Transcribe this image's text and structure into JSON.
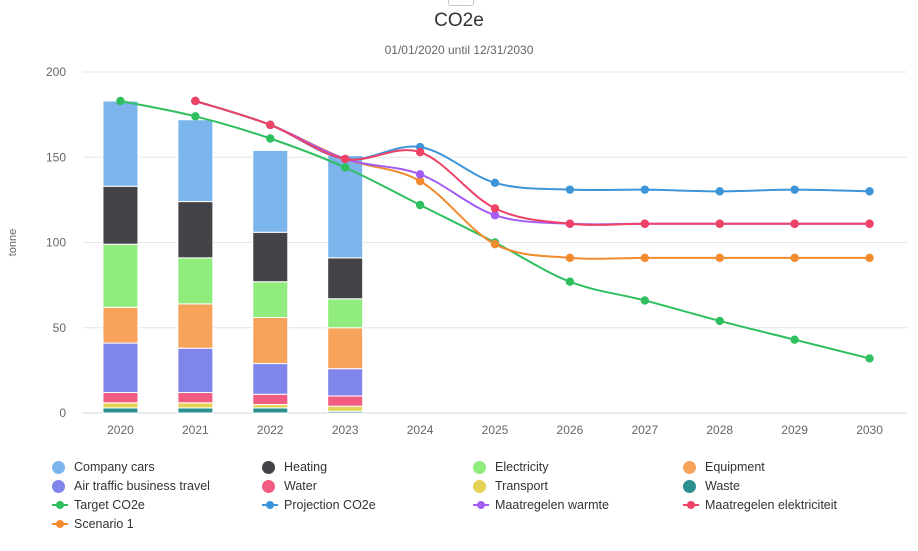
{
  "chart_data": {
    "type": "bar",
    "title": "CO2e",
    "subtitle": "01/01/2020 until 12/31/2030",
    "ylabel": "tonne",
    "ylim": [
      0,
      200
    ],
    "yticks": [
      0,
      50,
      100,
      150,
      200
    ],
    "categories": [
      "2020",
      "2021",
      "2022",
      "2023",
      "2024",
      "2025",
      "2026",
      "2027",
      "2028",
      "2029",
      "2030"
    ],
    "stacked_series": [
      {
        "name": "Waste",
        "color": "#2b908f",
        "values": [
          3,
          3,
          3,
          1
        ]
      },
      {
        "name": "Transport",
        "color": "#e4d354",
        "values": [
          3,
          3,
          2,
          3
        ]
      },
      {
        "name": "Water",
        "color": "#f15c80",
        "values": [
          6,
          6,
          6,
          6
        ]
      },
      {
        "name": "Air traffic business travel",
        "color": "#8085e9",
        "values": [
          29,
          26,
          18,
          16
        ]
      },
      {
        "name": "Equipment",
        "color": "#f7a35c",
        "values": [
          21,
          26,
          27,
          24
        ]
      },
      {
        "name": "Electricity",
        "color": "#90ed7d",
        "values": [
          37,
          27,
          21,
          17
        ]
      },
      {
        "name": "Heating",
        "color": "#434348",
        "values": [
          34,
          33,
          29,
          24
        ]
      },
      {
        "name": "Company cars",
        "color": "#7cb5ec",
        "values": [
          50,
          48,
          48,
          60
        ]
      }
    ],
    "line_series": [
      {
        "name": "Target CO2e",
        "color": "#2fbf5f",
        "values": [
          183,
          174,
          161,
          144,
          122,
          100,
          77,
          66,
          54,
          43,
          32
        ]
      },
      {
        "name": "Scenario 1",
        "color": "#f28a2e",
        "values": [
          null,
          183,
          169,
          149,
          136,
          99,
          91,
          91,
          91,
          91,
          91
        ]
      },
      {
        "name": "Maatregelen warmte",
        "color": "#a35cf5",
        "values": [
          null,
          183,
          169,
          149,
          140,
          116,
          111,
          111,
          111,
          111,
          111
        ]
      },
      {
        "name": "Projection CO2e",
        "color": "#3d95d8",
        "values": [
          null,
          183,
          169,
          149,
          156,
          135,
          131,
          131,
          130,
          131,
          130
        ]
      },
      {
        "name": "Maatregelen elektriciteit",
        "color": "#ee4266",
        "values": [
          null,
          183,
          169,
          149,
          153,
          120,
          111,
          111,
          111,
          111,
          111
        ]
      }
    ],
    "grid": true,
    "legend_position": "bottom"
  },
  "legend": [
    {
      "label": "Company cars",
      "color": "#7cb5ec",
      "kind": "bar"
    },
    {
      "label": "Heating",
      "color": "#434348",
      "kind": "bar"
    },
    {
      "label": "Electricity",
      "color": "#90ed7d",
      "kind": "bar"
    },
    {
      "label": "Equipment",
      "color": "#f7a35c",
      "kind": "bar"
    },
    {
      "label": "Air traffic business travel",
      "color": "#8085e9",
      "kind": "bar"
    },
    {
      "label": "Water",
      "color": "#f15c80",
      "kind": "bar"
    },
    {
      "label": "Transport",
      "color": "#e4d354",
      "kind": "bar"
    },
    {
      "label": "Waste",
      "color": "#2b908f",
      "kind": "bar"
    },
    {
      "label": "Target CO2e",
      "color": "#2fbf5f",
      "kind": "line"
    },
    {
      "label": "Projection CO2e",
      "color": "#3d95d8",
      "kind": "line"
    },
    {
      "label": "Maatregelen warmte",
      "color": "#a35cf5",
      "kind": "line"
    },
    {
      "label": "Maatregelen elektriciteit",
      "color": "#ee4266",
      "kind": "line"
    },
    {
      "label": "Scenario 1",
      "color": "#f28a2e",
      "kind": "line"
    }
  ]
}
